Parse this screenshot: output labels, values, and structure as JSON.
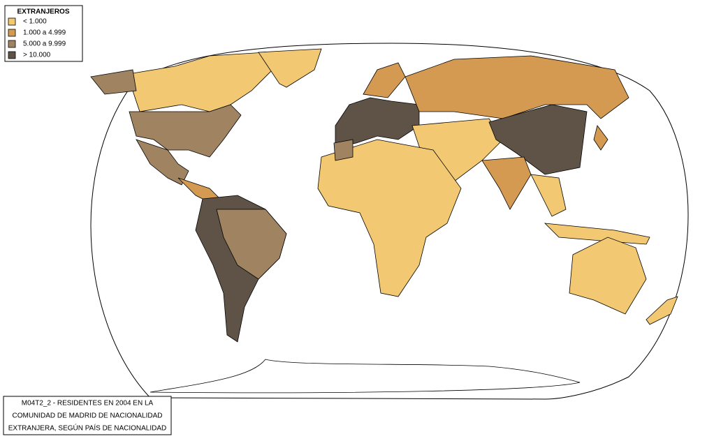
{
  "legend": {
    "title": "EXTRANJEROS",
    "items": [
      {
        "label": "< 1.000",
        "color": "#f2c872"
      },
      {
        "label": "1.000 a 4.999",
        "color": "#d49a52"
      },
      {
        "label": "5.000 a 9.999",
        "color": "#a08462"
      },
      {
        "label": "> 10.000",
        "color": "#5e5346"
      }
    ]
  },
  "caption": {
    "lines": [
      "M04T2_2 - RESIDENTES EN 2004 EN LA",
      "COMUNIDAD DE MADRID DE NACIONALIDAD",
      "EXTRANJERA, SEGÚN PAÍS DE NACIONALIDAD"
    ]
  }
}
